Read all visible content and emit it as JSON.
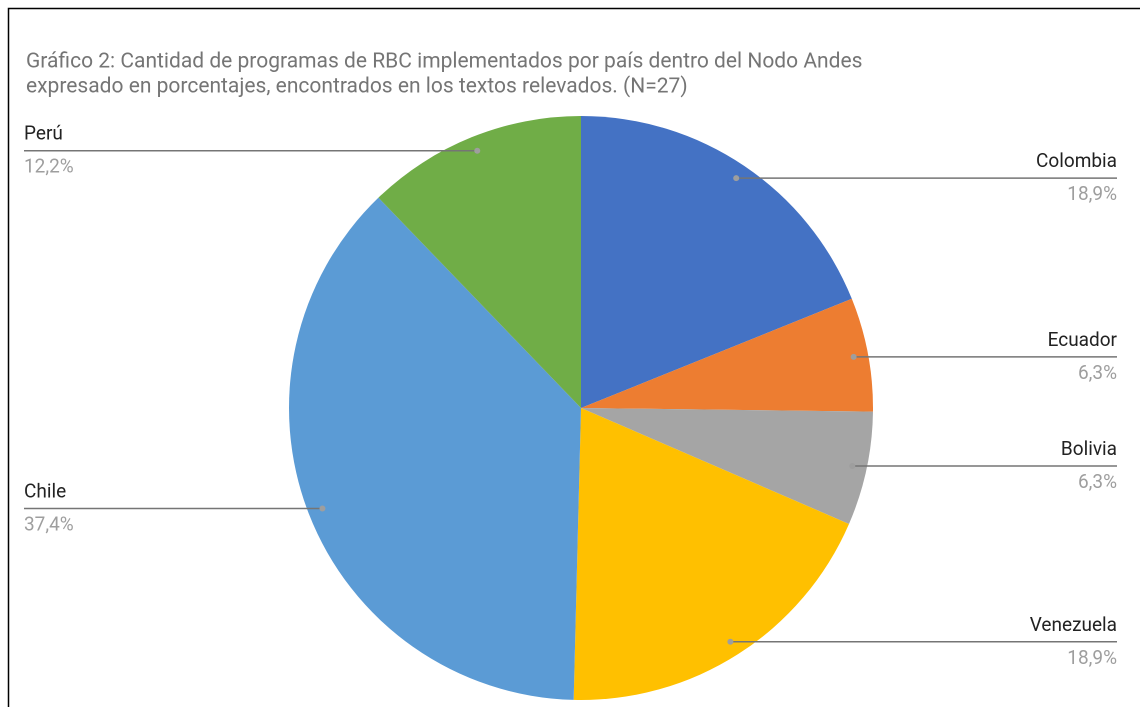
{
  "chart_data": {
    "type": "pie",
    "title": [
      "Gráfico 2: Cantidad de programas de RBC implementados por país dentro del Nodo Andes",
      "expresado en porcentajes, encontrados en los textos relevados. (N=27)"
    ],
    "categories": [
      "Colombia",
      "Ecuador",
      "Bolivia",
      "Venezuela",
      "Chile",
      "Perú"
    ],
    "values": [
      18.9,
      6.3,
      6.3,
      18.9,
      37.4,
      12.2
    ],
    "value_labels": [
      "18,9%",
      "6,3%",
      "6,3%",
      "18,9%",
      "37,4%",
      "12,2%"
    ],
    "colors": [
      "#4472c4",
      "#ed7d31",
      "#a5a5a5",
      "#ffc000",
      "#5b9bd5",
      "#70ad47"
    ]
  }
}
